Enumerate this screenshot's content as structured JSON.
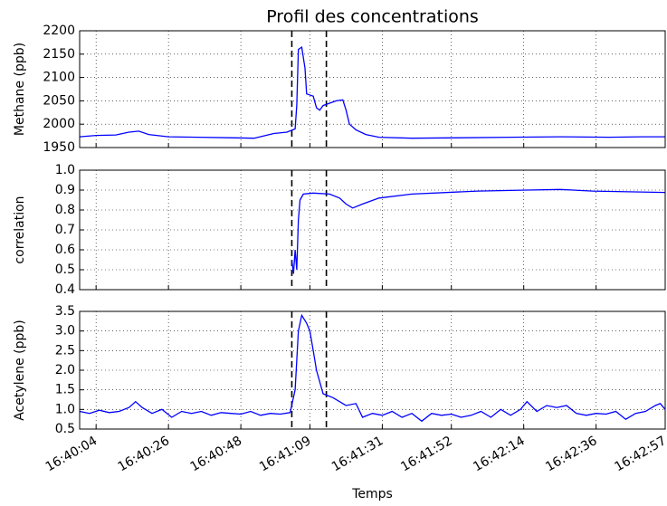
{
  "chart_data": [
    {
      "type": "line",
      "title": "Profil des concentrations",
      "ylabel": "Methane (ppb)",
      "xlim": [
        59999,
        60177
      ],
      "ylim": [
        1950,
        2200
      ],
      "yticks": [
        1950,
        2000,
        2050,
        2100,
        2150,
        2200
      ],
      "grid": true,
      "vlines": [
        60063.5,
        60074
      ],
      "xticks": [
        {
          "value": 60004,
          "label": "16:40:04"
        },
        {
          "value": 60026,
          "label": "16:40:26"
        },
        {
          "value": 60048,
          "label": "16:40:48"
        },
        {
          "value": 60069,
          "label": "16:41:09"
        },
        {
          "value": 60091,
          "label": "16:41:31"
        },
        {
          "value": 60112,
          "label": "16:41:52"
        },
        {
          "value": 60134,
          "label": "16:42:14"
        },
        {
          "value": 60156,
          "label": "16:42:36"
        },
        {
          "value": 60177,
          "label": "16:42:57"
        }
      ],
      "series": [
        {
          "color": "#0000ff",
          "x": [
            59999,
            60004,
            60010,
            60014,
            60017,
            60020,
            60026,
            60035,
            60045,
            60052,
            60055,
            60058,
            60062,
            60064.5,
            60065,
            60065.5,
            60066.5,
            60067.5,
            60068,
            60070,
            60071,
            60072,
            60073,
            60075,
            60077,
            60079,
            60080,
            60081,
            60083,
            60086,
            60090,
            60100,
            60115,
            60130,
            60145,
            60160,
            60170,
            60177
          ],
          "values": [
            1973,
            1976,
            1977,
            1983,
            1985,
            1978,
            1973,
            1972,
            1971,
            1970,
            1975,
            1980,
            1983,
            1990,
            2040,
            2160,
            2165,
            2120,
            2065,
            2060,
            2035,
            2030,
            2040,
            2045,
            2050,
            2052,
            2030,
            2000,
            1988,
            1978,
            1972,
            1970,
            1971,
            1972,
            1973,
            1972,
            1973,
            1973
          ]
        }
      ]
    },
    {
      "type": "line",
      "ylabel": "correlation",
      "xlim": [
        59999,
        60177
      ],
      "ylim": [
        0.4,
        1.0
      ],
      "yticks": [
        0.4,
        0.5,
        0.6,
        0.7,
        0.8,
        0.9,
        {
          "value": 1.0,
          "label": "1.0"
        }
      ],
      "grid": true,
      "vlines": [
        60063.5,
        60074
      ],
      "xticks": [
        {
          "value": 60004,
          "label": "16:40:04"
        },
        {
          "value": 60026,
          "label": "16:40:26"
        },
        {
          "value": 60048,
          "label": "16:40:48"
        },
        {
          "value": 60069,
          "label": "16:41:09"
        },
        {
          "value": 60091,
          "label": "16:41:31"
        },
        {
          "value": 60112,
          "label": "16:41:52"
        },
        {
          "value": 60134,
          "label": "16:42:14"
        },
        {
          "value": 60156,
          "label": "16:42:36"
        },
        {
          "value": 60177,
          "label": "16:42:57"
        }
      ],
      "series": [
        {
          "color": "#0000ff",
          "x": [
            60063.5,
            60064,
            60064.5,
            60065,
            60065.5,
            60066,
            60067,
            60070,
            60075,
            60078,
            60080,
            60082,
            60085,
            60090,
            60100,
            60120,
            60135,
            60145,
            60155,
            60177
          ],
          "values": [
            0.55,
            0.48,
            0.6,
            0.5,
            0.75,
            0.85,
            0.88,
            0.885,
            0.88,
            0.86,
            0.83,
            0.81,
            0.83,
            0.86,
            0.88,
            0.895,
            0.9,
            0.903,
            0.895,
            0.888
          ]
        }
      ]
    },
    {
      "type": "line",
      "ylabel": "Acetylene (ppb)",
      "xlabel": "Temps",
      "xlim": [
        59999,
        60177
      ],
      "ylim": [
        0.5,
        3.5
      ],
      "yticks": [
        0.5,
        {
          "value": 1.0,
          "label": "1.0"
        },
        1.5,
        {
          "value": 2.0,
          "label": "2.0"
        },
        2.5,
        {
          "value": 3.0,
          "label": "3.0"
        },
        3.5
      ],
      "grid": true,
      "vlines": [
        60063.5,
        60074
      ],
      "xticks": [
        {
          "value": 60004,
          "label": "16:40:04"
        },
        {
          "value": 60026,
          "label": "16:40:26"
        },
        {
          "value": 60048,
          "label": "16:40:48"
        },
        {
          "value": 60069,
          "label": "16:41:09"
        },
        {
          "value": 60091,
          "label": "16:41:31"
        },
        {
          "value": 60112,
          "label": "16:41:52"
        },
        {
          "value": 60134,
          "label": "16:42:14"
        },
        {
          "value": 60156,
          "label": "16:42:36"
        },
        {
          "value": 60177,
          "label": "16:42:57"
        }
      ],
      "series": [
        {
          "color": "#0000ff",
          "x": [
            59999,
            60002,
            60005,
            60008,
            60011,
            60014,
            60016,
            60018,
            60021,
            60024,
            60027,
            60030,
            60033,
            60036,
            60039,
            60042,
            60045,
            60048,
            60051,
            60054,
            60057,
            60060,
            60063,
            60064.5,
            60065.5,
            60066.5,
            60068,
            60069,
            60070,
            60071,
            60073,
            60076,
            60080,
            60083,
            60085,
            60088,
            60091,
            60094,
            60097,
            60100,
            60103,
            60106,
            60109,
            60112,
            60115,
            60118,
            60121,
            60124,
            60127,
            60130,
            60133,
            60135,
            60138,
            60141,
            60144,
            60147,
            60150,
            60153,
            60156,
            60159,
            60162,
            60165,
            60168,
            60171,
            60174,
            60175.5,
            60177
          ],
          "values": [
            0.95,
            0.9,
            0.98,
            0.92,
            0.95,
            1.05,
            1.2,
            1.05,
            0.9,
            1.0,
            0.8,
            0.95,
            0.9,
            0.95,
            0.85,
            0.92,
            0.9,
            0.88,
            0.95,
            0.85,
            0.9,
            0.88,
            0.92,
            1.5,
            3.0,
            3.4,
            3.2,
            3.0,
            2.5,
            2.0,
            1.4,
            1.3,
            1.1,
            1.15,
            0.8,
            0.9,
            0.85,
            0.95,
            0.8,
            0.9,
            0.7,
            0.9,
            0.85,
            0.88,
            0.8,
            0.85,
            0.95,
            0.8,
            1.0,
            0.85,
            1.0,
            1.2,
            0.95,
            1.1,
            1.05,
            1.1,
            0.9,
            0.85,
            0.9,
            0.88,
            0.95,
            0.75,
            0.9,
            0.95,
            1.1,
            1.15,
            1.0
          ]
        }
      ]
    }
  ]
}
